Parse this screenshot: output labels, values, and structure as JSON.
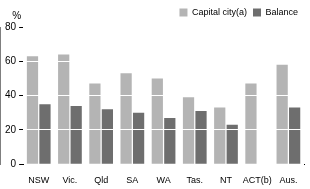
{
  "chart_data": {
    "type": "bar",
    "ylabel": "%",
    "categories": [
      "NSW",
      "Vic.",
      "Qld",
      "SA",
      "WA",
      "Tas.",
      "NT",
      "ACT(b)",
      "Aus."
    ],
    "series": [
      {
        "name": "Capital city(a)",
        "color": "#b4b4b4",
        "values": [
          63,
          64,
          47,
          53,
          50,
          39,
          33,
          47,
          58
        ]
      },
      {
        "name": "Balance",
        "color": "#6e6e6e",
        "values": [
          35,
          34,
          32,
          30,
          27,
          31,
          23,
          null,
          33
        ]
      }
    ],
    "ylim": [
      0,
      80
    ],
    "yticks": [
      0,
      20,
      40,
      60,
      80
    ],
    "grid": true,
    "legend": "top-right"
  }
}
